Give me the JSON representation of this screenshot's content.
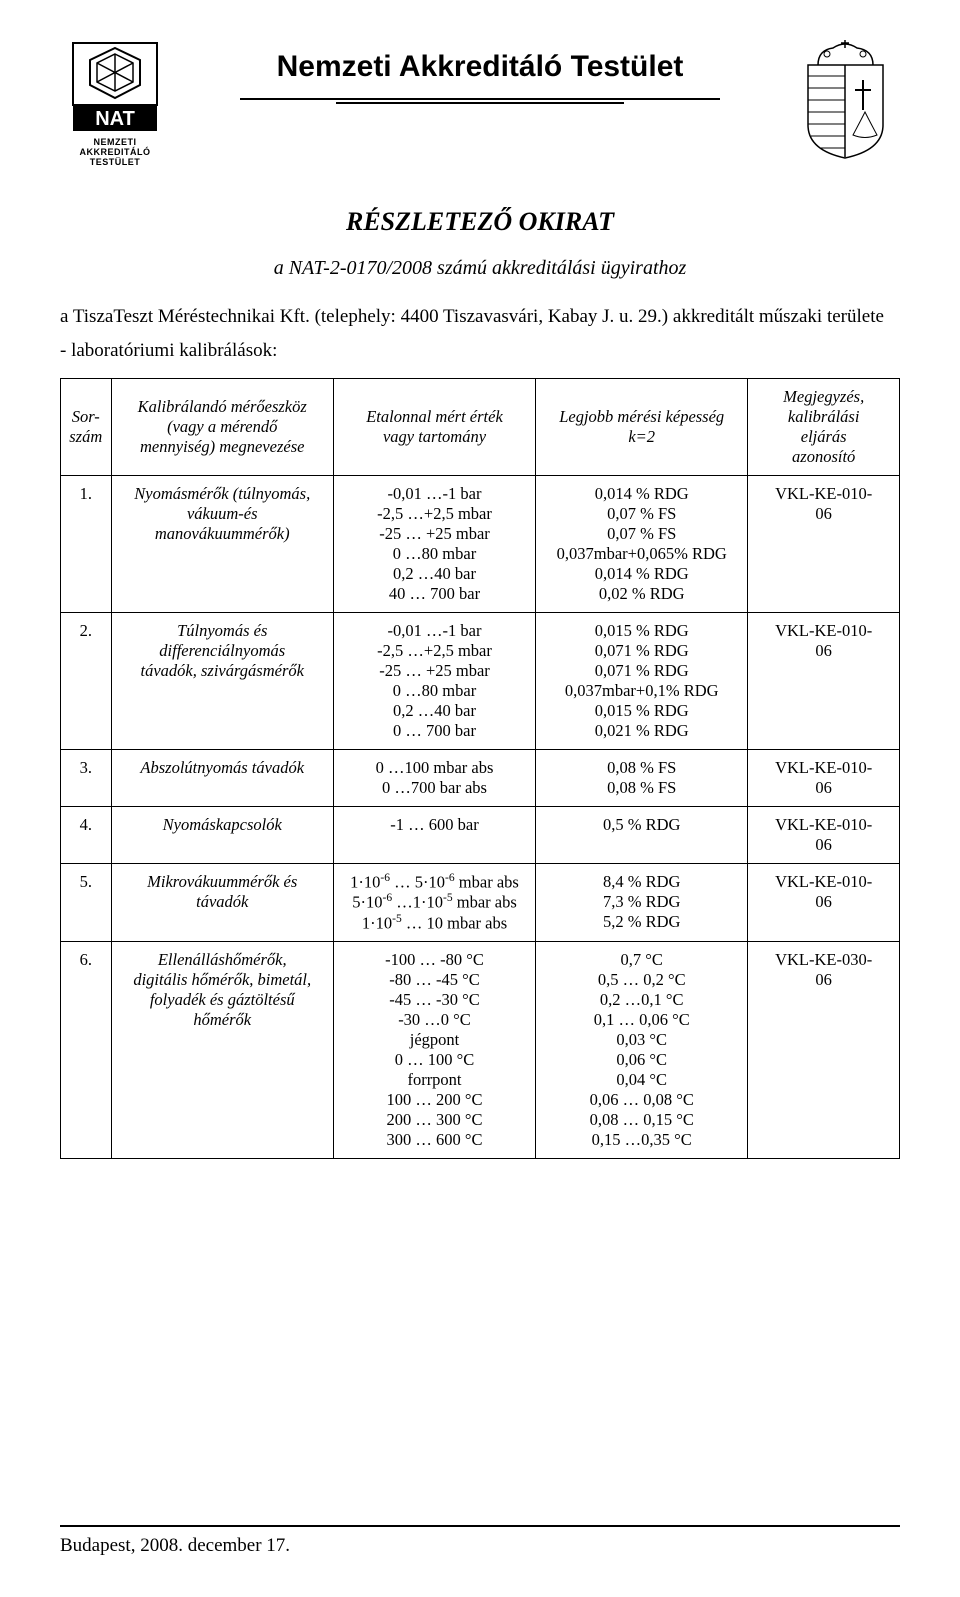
{
  "colors": {
    "text": "#000000",
    "background": "#ffffff",
    "border": "#000000"
  },
  "header": {
    "org_name": "Nemzeti Akkreditáló Testület",
    "left_logo_label": "NAT",
    "left_logo_sub": "NEMZETI\nAKKREDITÁLÓ\nTESTÜLET"
  },
  "title": "RÉSZLETEZŐ OKIRAT",
  "subtitle": "a NAT-2-0170/2008 számú akkreditálási ügyirathoz",
  "intro": "a TiszaTeszt Méréstechnikai Kft. (telephely: 4400 Tiszavasvári, Kabay J. u. 29.) akkreditált műszaki területe",
  "bullet": "-   laboratóriumi kalibrálások:",
  "table": {
    "headers": {
      "num": "Sor-\nszám",
      "name": "Kalibrálandó mérőeszköz\n(vagy a mérendő\nmennyiség) megnevezése",
      "range": "Etalonnal mért érték\nvagy tartomány",
      "capability": "Legjobb mérési képesség\nk=2",
      "note": "Megjegyzés,\nkalibrálási\neljárás\nazonosító"
    },
    "rows": [
      {
        "num": "1.",
        "name": "Nyomásmérők (túlnyomás,\nvákuum-és\nmanovákuummérők)",
        "range": "-0,01 …-1 bar\n-2,5 …+2,5 mbar\n-25 … +25 mbar\n0 …80 mbar\n0,2 …40 bar\n40 … 700 bar",
        "capability": "0,014 % RDG\n0,07 % FS\n0,07 % FS\n0,037mbar+0,065% RDG\n0,014 % RDG\n0,02  % RDG",
        "note": "VKL-KE-010-\n06"
      },
      {
        "num": "2.",
        "name": "Túlnyomás és\ndifferenciálnyomás\ntávadók, szivárgásmérők",
        "range": "-0,01 …-1 bar\n-2,5 …+2,5 mbar\n-25 … +25 mbar\n0 …80 mbar\n0,2 …40 bar\n0 … 700 bar",
        "capability": "0,015 % RDG\n0,071 % RDG\n0,071 % RDG\n0,037mbar+0,1% RDG\n0,015 % RDG\n0,021 % RDG",
        "note": "VKL-KE-010-\n06"
      },
      {
        "num": "3.",
        "name": "Abszolútnyomás távadók",
        "range": "0 …100 mbar abs\n0 …700 bar abs",
        "capability": "0,08 % FS\n0,08 % FS",
        "note": "VKL-KE-010-\n06"
      },
      {
        "num": "4.",
        "name": "Nyomáskapcsolók",
        "range": "-1 … 600 bar",
        "capability": "0,5 % RDG",
        "note": "VKL-KE-010-\n06"
      },
      {
        "num": "5.",
        "name": "Mikrovákuummérők és\ntávadók",
        "range_html": "1·10<span class='sup'>-6</span> … 5·10<span class='sup'>-6</span> mbar abs\n5·10<span class='sup'>-6</span> …1·10<span class='sup'>-5</span> mbar abs\n1·10<span class='sup'>-5</span> … 10 mbar abs",
        "capability": "8,4 % RDG\n7,3 % RDG\n5,2 % RDG",
        "note": "VKL-KE-010-\n06"
      },
      {
        "num": "6.",
        "name": "Ellenálláshőmérők,\ndigitális hőmérők, bimetál,\nfolyadék és gáztöltésű\nhőmérők",
        "range": "-100 … -80 °C\n-80 … -45 °C\n-45 … -30 °C\n-30 …0 °C\njégpont\n0 … 100 °C\nforrpont\n100 … 200 °C\n200 … 300 °C\n300 … 600 °C",
        "capability": "0,7 °C\n0,5 … 0,2 °C\n0,2 …0,1 °C\n0,1 … 0,06 °C\n0,03 °C\n0,06 °C\n0,04 °C\n0,06 … 0,08 °C\n0,08 … 0,15 °C\n0,15 …0,35 °C",
        "note": "VKL-KE-030-\n06"
      }
    ]
  },
  "footer": "Budapest, 2008. december 17."
}
